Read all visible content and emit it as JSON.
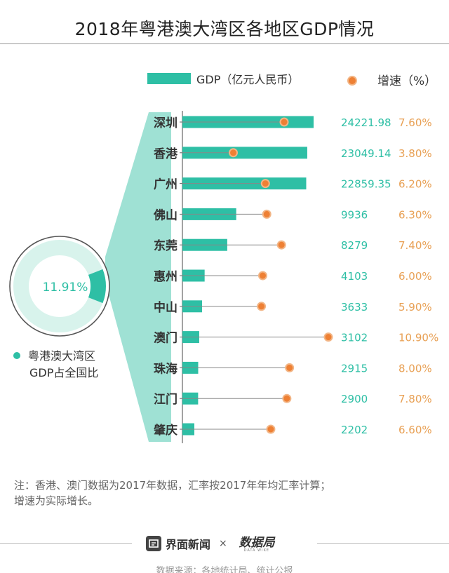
{
  "header": {
    "title": "2018年粤港澳大湾区各地区GDP情况"
  },
  "chart_data": {
    "type": "bar",
    "title": "2018年粤港澳大湾区各地区GDP情况",
    "categories": [
      "深圳",
      "香港",
      "广州",
      "佛山",
      "东莞",
      "惠州",
      "中山",
      "澳门",
      "珠海",
      "江门",
      "肇庆"
    ],
    "series": [
      {
        "name": "GDP（亿元人民币）",
        "kind": "bar",
        "values": [
          24221.98,
          23049.14,
          22859.35,
          9936,
          8279,
          4103,
          3633,
          3102,
          2915,
          2900,
          2202
        ],
        "labels": [
          "24221.98",
          "23049.14",
          "22859.35",
          "9936",
          "8279",
          "4103",
          "3633",
          "3102",
          "2915",
          "2900",
          "2202"
        ]
      },
      {
        "name": "增速（%）",
        "kind": "point",
        "values": [
          7.6,
          3.8,
          6.2,
          6.3,
          7.4,
          6.0,
          5.9,
          10.9,
          8.0,
          7.8,
          6.6
        ],
        "labels": [
          "7.60%",
          "3.80%",
          "6.20%",
          "6.30%",
          "7.40%",
          "6.00%",
          "5.90%",
          "10.90%",
          "8.00%",
          "7.80%",
          "6.60%"
        ]
      }
    ],
    "xlim_gdp": [
      0,
      24221.98
    ],
    "xlim_growth": [
      0,
      10.9
    ],
    "legend": {
      "position": "top",
      "bar_label": "GDP（亿元人民币）",
      "point_label": "增速（%）"
    },
    "donut": {
      "value": 11.91,
      "label": "11.91%",
      "caption_line1": "粤港澳大湾区",
      "caption_line2": "GDP占全国比"
    },
    "colors": {
      "bar": "#2ebfa5",
      "point_fill": "#ee8034",
      "point_stroke": "#f2b585",
      "value_text": "#2ebfa5",
      "growth_text": "#e8a054",
      "donut_light": "#d8f3ec",
      "donut_dark": "#2ebfa5",
      "funnel": "#9fe1d4",
      "connector": "#888888"
    }
  },
  "note": {
    "line1": "注：香港、澳门数据为2017年数据，汇率按2017年年均汇率计算；",
    "line2": "增速为实际增长。"
  },
  "footer": {
    "brand": "界面新闻",
    "separator": "×",
    "partner": "数据局",
    "partner_sub": "DATA WIKE",
    "subtitle": "数据来源：各地统计局、统计公报"
  }
}
